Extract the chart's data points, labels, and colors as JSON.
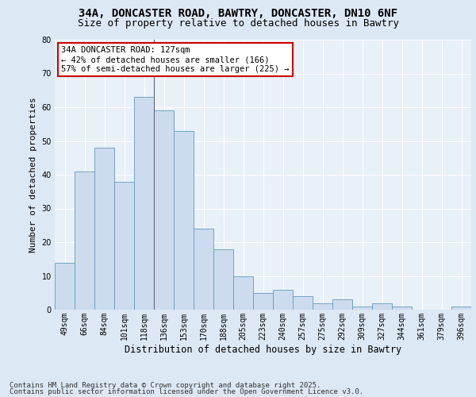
{
  "title_line1": "34A, DONCASTER ROAD, BAWTRY, DONCASTER, DN10 6NF",
  "title_line2": "Size of property relative to detached houses in Bawtry",
  "xlabel": "Distribution of detached houses by size in Bawtry",
  "ylabel": "Number of detached properties",
  "categories": [
    "49sqm",
    "66sqm",
    "84sqm",
    "101sqm",
    "118sqm",
    "136sqm",
    "153sqm",
    "170sqm",
    "188sqm",
    "205sqm",
    "223sqm",
    "240sqm",
    "257sqm",
    "275sqm",
    "292sqm",
    "309sqm",
    "327sqm",
    "344sqm",
    "361sqm",
    "379sqm",
    "396sqm"
  ],
  "values": [
    14,
    41,
    48,
    38,
    63,
    59,
    53,
    24,
    18,
    10,
    5,
    6,
    4,
    2,
    3,
    1,
    2,
    1,
    0,
    0,
    1
  ],
  "bar_color": "#ccdcee",
  "bar_edge_color": "#6699bb",
  "annotation_text": "34A DONCASTER ROAD: 127sqm\n← 42% of detached houses are smaller (166)\n57% of semi-detached houses are larger (225) →",
  "annotation_box_color": "white",
  "annotation_box_edge_color": "#cc0000",
  "vline_index": 4,
  "ylim": [
    0,
    80
  ],
  "yticks": [
    0,
    10,
    20,
    30,
    40,
    50,
    60,
    70,
    80
  ],
  "bg_color": "#dce8f0",
  "plot_bg_color": "#e8f0f8",
  "grid_color": "#ffffff",
  "fig_bg_color": "#dce8f4",
  "footer_line1": "Contains HM Land Registry data © Crown copyright and database right 2025.",
  "footer_line2": "Contains public sector information licensed under the Open Government Licence v3.0.",
  "title_fontsize": 10,
  "subtitle_fontsize": 9,
  "tick_fontsize": 7,
  "ylabel_fontsize": 8,
  "xlabel_fontsize": 8.5,
  "annotation_fontsize": 7.5,
  "footer_fontsize": 6.5
}
